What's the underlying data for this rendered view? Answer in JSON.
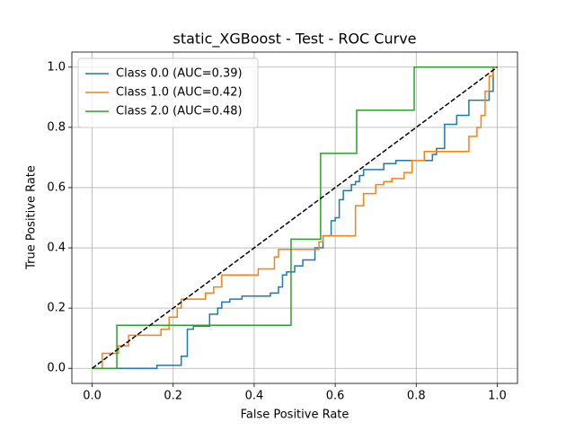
{
  "chart_data": {
    "type": "line",
    "title": "static_XGBoost - Test - ROC Curve",
    "x_label": "False Positive Rate",
    "y_label": "True Positive Rate",
    "xlim": [
      -0.05,
      1.05
    ],
    "ylim": [
      -0.05,
      1.05
    ],
    "xticks": [
      {
        "value": 0,
        "label": "0.0"
      },
      0.2,
      0.4,
      0.6,
      0.8,
      {
        "value": 1,
        "label": "1.0"
      }
    ],
    "yticks": [
      {
        "value": 0,
        "label": "0.0"
      },
      0.2,
      0.4,
      0.6,
      0.8,
      {
        "value": 1,
        "label": "1.0"
      }
    ],
    "grid": true,
    "legend": "upper left",
    "series": [
      {
        "name": "Class 0.0 (AUC=0.39)",
        "color": "#1f77b4",
        "x": [
          0,
          0.16,
          0.16,
          0.22,
          0.22,
          0.235,
          0.235,
          0.25,
          0.25,
          0.29,
          0.29,
          0.31,
          0.31,
          0.32,
          0.32,
          0.34,
          0.34,
          0.37,
          0.37,
          0.44,
          0.44,
          0.46,
          0.46,
          0.47,
          0.47,
          0.48,
          0.48,
          0.5,
          0.5,
          0.52,
          0.52,
          0.55,
          0.55,
          0.57,
          0.57,
          0.59,
          0.59,
          0.6,
          0.6,
          0.61,
          0.61,
          0.62,
          0.62,
          0.64,
          0.64,
          0.65,
          0.65,
          0.66,
          0.66,
          0.67,
          0.67,
          0.72,
          0.72,
          0.75,
          0.75,
          0.84,
          0.84,
          0.85,
          0.85,
          0.87,
          0.87,
          0.9,
          0.9,
          0.93,
          0.93,
          0.98,
          0.98,
          0.99,
          0.99,
          1
        ],
        "values": [
          0,
          0,
          0.01,
          0.01,
          0.04,
          0.04,
          0.13,
          0.13,
          0.14,
          0.14,
          0.18,
          0.18,
          0.2,
          0.2,
          0.22,
          0.22,
          0.23,
          0.23,
          0.24,
          0.24,
          0.25,
          0.25,
          0.27,
          0.27,
          0.31,
          0.31,
          0.32,
          0.32,
          0.34,
          0.34,
          0.36,
          0.36,
          0.4,
          0.4,
          0.44,
          0.44,
          0.49,
          0.49,
          0.5,
          0.5,
          0.56,
          0.56,
          0.59,
          0.59,
          0.61,
          0.61,
          0.62,
          0.62,
          0.64,
          0.64,
          0.66,
          0.66,
          0.68,
          0.68,
          0.69,
          0.69,
          0.71,
          0.71,
          0.73,
          0.73,
          0.81,
          0.81,
          0.84,
          0.84,
          0.89,
          0.89,
          0.92,
          0.92,
          1,
          1
        ]
      },
      {
        "name": "Class 1.0 (AUC=0.42)",
        "color": "#ff7f0e",
        "x": [
          0,
          0.025,
          0.025,
          0.065,
          0.065,
          0.09,
          0.09,
          0.17,
          0.17,
          0.19,
          0.19,
          0.21,
          0.21,
          0.22,
          0.22,
          0.28,
          0.28,
          0.3,
          0.3,
          0.32,
          0.32,
          0.41,
          0.41,
          0.45,
          0.45,
          0.46,
          0.46,
          0.56,
          0.56,
          0.57,
          0.57,
          0.65,
          0.65,
          0.67,
          0.67,
          0.7,
          0.7,
          0.72,
          0.72,
          0.74,
          0.74,
          0.77,
          0.77,
          0.79,
          0.79,
          0.82,
          0.82,
          0.93,
          0.93,
          0.95,
          0.95,
          0.96,
          0.96,
          0.97,
          0.97,
          0.98,
          0.98,
          0.99,
          0.99,
          1
        ],
        "values": [
          0,
          0,
          0.05,
          0.05,
          0.075,
          0.075,
          0.11,
          0.11,
          0.13,
          0.13,
          0.17,
          0.17,
          0.2,
          0.2,
          0.23,
          0.23,
          0.25,
          0.25,
          0.27,
          0.27,
          0.31,
          0.31,
          0.33,
          0.33,
          0.37,
          0.37,
          0.395,
          0.395,
          0.42,
          0.42,
          0.44,
          0.44,
          0.54,
          0.54,
          0.58,
          0.58,
          0.61,
          0.61,
          0.62,
          0.62,
          0.63,
          0.63,
          0.65,
          0.65,
          0.69,
          0.69,
          0.72,
          0.72,
          0.77,
          0.77,
          0.8,
          0.8,
          0.84,
          0.84,
          0.92,
          0.92,
          0.97,
          0.97,
          1,
          1
        ]
      },
      {
        "name": "Class 2.0 (AUC=0.48)",
        "color": "#2ca02c",
        "x": [
          0,
          0.061,
          0.061,
          0.491,
          0.491,
          0.564,
          0.564,
          0.653,
          0.653,
          0.795,
          0.795,
          1
        ],
        "values": [
          0,
          0,
          0.143,
          0.143,
          0.429,
          0.429,
          0.714,
          0.714,
          0.857,
          0.857,
          1,
          1
        ]
      }
    ],
    "diagonal": {
      "x": [
        0,
        1
      ],
      "values": [
        0,
        1
      ],
      "color": "#000000"
    }
  }
}
